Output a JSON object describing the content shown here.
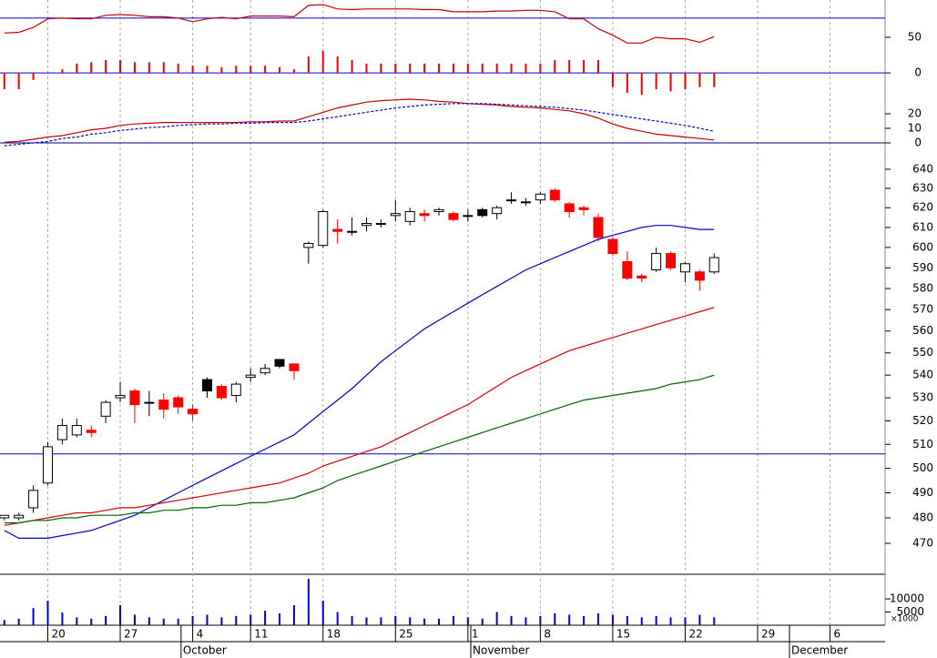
{
  "x_axis": {
    "xlim": [
      -0.3,
      60.8
    ],
    "grid": true,
    "xticks": [
      {
        "value": 3,
        "label": "20"
      },
      {
        "value": 8,
        "label": "27"
      },
      {
        "value": 13,
        "label": "4"
      },
      {
        "value": 17,
        "label": "11"
      },
      {
        "value": 22,
        "label": "18"
      },
      {
        "value": 27,
        "label": "25"
      },
      {
        "value": 32,
        "label": "1"
      },
      {
        "value": 37,
        "label": "8"
      },
      {
        "value": 42,
        "label": "15"
      },
      {
        "value": 47,
        "label": "22"
      },
      {
        "value": 52,
        "label": "29"
      },
      {
        "value": 57,
        "label": "6"
      }
    ],
    "month_ticks": [
      {
        "value": 12.2,
        "label": "October"
      },
      {
        "value": 32.2,
        "label": "November"
      },
      {
        "value": 54.2,
        "label": "December"
      }
    ]
  },
  "chart_data": [
    {
      "type": "oscillator",
      "ylim": [
        -30,
        102.5
      ],
      "yticks": [
        50,
        0
      ],
      "hlines": [
        {
          "value": 77,
          "color": "#0000cc"
        },
        {
          "value": 0,
          "color": "#0000cc"
        }
      ],
      "series": [
        {
          "kind": "line",
          "color": "#cc0000",
          "values": [
            56,
            57,
            64,
            76,
            77,
            76,
            76,
            81,
            82,
            81,
            79,
            79,
            77,
            72,
            76,
            78,
            76,
            80,
            80,
            80,
            79,
            95,
            96,
            90,
            89,
            90,
            90,
            90,
            90,
            89,
            89,
            86,
            86,
            86,
            87,
            87,
            88,
            88,
            86,
            76,
            76,
            62,
            53,
            42,
            42,
            50,
            48,
            48,
            43,
            51
          ]
        },
        {
          "kind": "bar",
          "color": "#ee0000",
          "values": [
            -23,
            -23,
            -10,
            0,
            5,
            13,
            15,
            18,
            18,
            15,
            15,
            15,
            13,
            10,
            10,
            8,
            10,
            10,
            10,
            8,
            5,
            23,
            31,
            23,
            18,
            13,
            13,
            13,
            13,
            13,
            13,
            13,
            13,
            13,
            13,
            13,
            13,
            13,
            18,
            18,
            18,
            18,
            -20,
            -28,
            -31,
            -23,
            -26,
            -23,
            -20,
            -20
          ]
        }
      ]
    },
    {
      "type": "oscillator",
      "ylim": [
        -2,
        35
      ],
      "yticks": [
        20,
        10,
        0
      ],
      "hlines": [
        {
          "value": 0,
          "color": "#000080"
        }
      ],
      "series": [
        {
          "kind": "line",
          "color": "#cc0000",
          "values": [
            0.5,
            1,
            2.5,
            4,
            5,
            7,
            9,
            10,
            12,
            13,
            13.5,
            14,
            14,
            14,
            14,
            14,
            14,
            14.5,
            14.5,
            15,
            15,
            18,
            21,
            24,
            26,
            28,
            29,
            29.5,
            30,
            29.5,
            28.5,
            28,
            27,
            26.5,
            26,
            25,
            24.5,
            24,
            23,
            22,
            20,
            17,
            13,
            10,
            8,
            6,
            5,
            4,
            3,
            2
          ]
        },
        {
          "kind": "line",
          "color": "#0000cc",
          "dashed": true,
          "values": [
            -2,
            -1,
            0,
            1,
            3,
            4,
            6,
            7,
            8.5,
            9.5,
            10.5,
            11,
            12,
            12.5,
            13,
            13,
            13.5,
            13.5,
            14,
            14,
            14,
            15,
            16.5,
            18,
            19.5,
            21,
            22.5,
            24,
            25,
            26,
            26.5,
            27,
            27,
            27,
            26.5,
            26,
            25.5,
            25,
            24.5,
            23.5,
            22.5,
            21,
            19.5,
            18,
            16.5,
            15,
            13.5,
            12,
            10,
            8
          ]
        }
      ]
    },
    {
      "type": "candlestick",
      "log_scale": true,
      "ylim": [
        458.5,
        652.6
      ],
      "yticks": [
        640,
        630,
        620,
        610,
        600,
        590,
        580,
        570,
        560,
        550,
        540,
        530,
        520,
        510,
        500,
        490,
        480,
        470
      ],
      "hlines": [
        {
          "value": 506,
          "color": "#0000cc"
        }
      ],
      "open": [
        480,
        480,
        484,
        494,
        512,
        514,
        516,
        522,
        530,
        533,
        528,
        529,
        530,
        525,
        538,
        535,
        531,
        539,
        541,
        547,
        545,
        600,
        601,
        609,
        608,
        611,
        612,
        616,
        613,
        617,
        618,
        617,
        616,
        619,
        617,
        624,
        623,
        624,
        629,
        622,
        620,
        615,
        604,
        593,
        586,
        589,
        597,
        588,
        588,
        588
      ],
      "high": [
        481,
        482,
        493,
        511,
        521,
        521,
        518,
        529,
        537,
        534,
        533,
        532,
        531,
        527,
        539,
        536,
        537,
        543,
        545,
        547,
        545,
        603,
        619,
        614,
        615,
        615,
        614,
        624,
        620,
        619,
        620,
        618,
        619,
        620,
        621,
        628,
        625,
        628,
        630,
        623,
        621,
        617,
        605,
        598,
        587,
        600,
        598,
        593,
        589,
        597
      ],
      "low": [
        479,
        479,
        482,
        493,
        510,
        513,
        513,
        519,
        528,
        519,
        522,
        521,
        523,
        520,
        530,
        529,
        528,
        537,
        540,
        543,
        538,
        592,
        600,
        602,
        606,
        608,
        610,
        613,
        611,
        613,
        616,
        613,
        613,
        615,
        614,
        622,
        621,
        622,
        623,
        615,
        616,
        603,
        596,
        584,
        583,
        588,
        589,
        583,
        579,
        587
      ],
      "close": [
        481,
        481,
        491,
        509,
        518,
        518,
        515,
        528,
        531,
        527,
        528,
        525,
        526,
        523,
        533,
        530,
        536,
        540,
        543,
        544,
        542,
        602,
        618,
        608,
        608,
        612,
        612,
        617,
        618,
        616,
        619,
        614,
        616,
        616,
        620,
        624,
        623,
        627,
        624,
        618,
        619,
        605,
        597,
        585,
        585,
        597,
        590,
        592,
        584,
        595
      ],
      "colors": [
        "#ffffff",
        "#ffffff",
        "#ffffff",
        "#ffffff",
        "#ffffff",
        "#ffffff",
        "#ff0000",
        "#ffffff",
        "#ffffff",
        "#ff0000",
        "#ffffff",
        "#ff0000",
        "#ff0000",
        "#ff0000",
        "#000000",
        "#ff0000",
        "#ffffff",
        "#ffffff",
        "#ffffff",
        "#000000",
        "#ff0000",
        "#ffffff",
        "#ffffff",
        "#ff0000",
        "#ffffff",
        "#ffffff",
        "#ffffff",
        "#ffffff",
        "#ffffff",
        "#ff0000",
        "#ffffff",
        "#ff0000",
        "#ffffff",
        "#000000",
        "#ffffff",
        "#ffffff",
        "#ffffff",
        "#ffffff",
        "#ff0000",
        "#ff0000",
        "#ff0000",
        "#ff0000",
        "#ff0000",
        "#ff0000",
        "#ff0000",
        "#ffffff",
        "#ff0000",
        "#ffffff",
        "#ff0000",
        "#ffffff"
      ],
      "series": [
        {
          "color": "#0000cc",
          "values": [
            475,
            472,
            472,
            472,
            473,
            474,
            475,
            477,
            479,
            481,
            484,
            487,
            490,
            493,
            496,
            499,
            502,
            505,
            508,
            511,
            514,
            519,
            524,
            529,
            534,
            540,
            546,
            551,
            556,
            561,
            565,
            569,
            573,
            577,
            581,
            585,
            589,
            592,
            595,
            598,
            601,
            604,
            606,
            608,
            610,
            611,
            611,
            610,
            609,
            609
          ]
        },
        {
          "color": "#dd0000",
          "values": [
            477,
            478,
            479,
            480,
            481,
            482,
            482,
            483,
            484,
            484,
            485,
            486,
            487,
            488,
            489,
            490,
            491,
            492,
            493,
            494,
            496,
            498,
            501,
            503,
            505,
            507,
            509,
            512,
            515,
            518,
            521,
            524,
            527,
            531,
            535,
            539,
            542,
            545,
            548,
            551,
            553,
            555,
            557,
            559,
            561,
            563,
            565,
            567,
            569,
            571
          ]
        },
        {
          "color": "#006600",
          "values": [
            478,
            478,
            479,
            479,
            480,
            480,
            481,
            481,
            481,
            482,
            482,
            483,
            483,
            484,
            484,
            485,
            485,
            486,
            486,
            487,
            488,
            490,
            492,
            495,
            497,
            499,
            501,
            503,
            505,
            507,
            509,
            511,
            513,
            515,
            517,
            519,
            521,
            523,
            525,
            527,
            529,
            530,
            531,
            532,
            533,
            534,
            536,
            537,
            538,
            540
          ]
        }
      ]
    },
    {
      "type": "bar",
      "ylim": [
        0,
        19000
      ],
      "yticks": [
        10000,
        5000
      ],
      "ylabel": "×1000",
      "color": "#0000cc",
      "values": [
        2000,
        2500,
        6500,
        9300,
        4800,
        3000,
        2500,
        3500,
        7600,
        4000,
        3000,
        2500,
        2500,
        3500,
        4000,
        3000,
        3500,
        4000,
        5500,
        4500,
        7600,
        17600,
        9300,
        5000,
        3500,
        3000,
        3000,
        3500,
        3000,
        2500,
        2500,
        3500,
        3000,
        2500,
        5000,
        3500,
        3000,
        3500,
        4500,
        4000,
        3500,
        4500,
        4000,
        3500,
        3000,
        3500,
        3000,
        3000,
        4000,
        3000
      ]
    }
  ]
}
